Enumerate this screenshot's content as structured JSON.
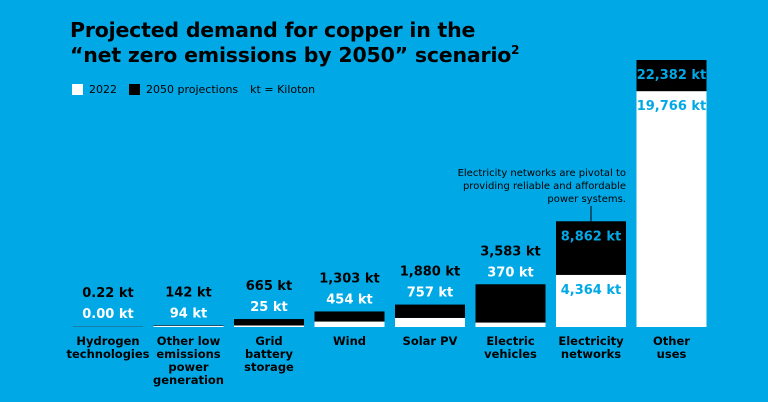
{
  "title_line1": "Projected demand for copper in the",
  "title_line2": "“net zero emissions by 2050” scenario",
  "title_sup": "2",
  "legend": {
    "item_2022": "2022",
    "item_2050": "2050 projections",
    "unit_note": "kt = Kiloton"
  },
  "colors": {
    "background": "#00a9e6",
    "v2022": "#ffffff",
    "v2050": "#000000"
  },
  "chart_data": {
    "type": "bar",
    "title": "Projected demand for copper in the “net zero emissions by 2050” scenario",
    "unit": "kt",
    "categories": [
      "Hydrogen technologies",
      "Other low emissions power generation",
      "Grid battery storage",
      "Wind",
      "Solar PV",
      "Electric vehicles",
      "Electricity networks",
      "Other uses"
    ],
    "category_lines": [
      [
        "Hydrogen",
        "technologies"
      ],
      [
        "Other low",
        "emissions",
        "power",
        "generation"
      ],
      [
        "Grid",
        "battery",
        "storage"
      ],
      [
        "Wind"
      ],
      [
        "Solar PV"
      ],
      [
        "Electric",
        "vehicles"
      ],
      [
        "Electricity",
        "networks"
      ],
      [
        "Other",
        "uses"
      ]
    ],
    "series": [
      {
        "name": "2022",
        "values": [
          0.0,
          94,
          25,
          454,
          757,
          370,
          4364,
          19766
        ],
        "labels": [
          "0.00 kt",
          "94 kt",
          "25 kt",
          "454 kt",
          "757 kt",
          "370 kt",
          "4,364 kt",
          "19,766 kt"
        ]
      },
      {
        "name": "2050 projections",
        "values": [
          0.22,
          142,
          665,
          1303,
          1880,
          3583,
          8862,
          22382
        ],
        "labels": [
          "0.22 kt",
          "142 kt",
          "665 kt",
          "1,303 kt",
          "1,880 kt",
          "3,583 kt",
          "8,862 kt",
          "22,382 kt"
        ]
      }
    ],
    "ylim": [
      0,
      22382
    ],
    "grid": false,
    "legend_position": "top-left",
    "annotation": {
      "target": "Electricity networks",
      "lines": [
        "Electricity networks are pivotal to",
        "providing reliable and affordable",
        "power systems."
      ]
    }
  }
}
